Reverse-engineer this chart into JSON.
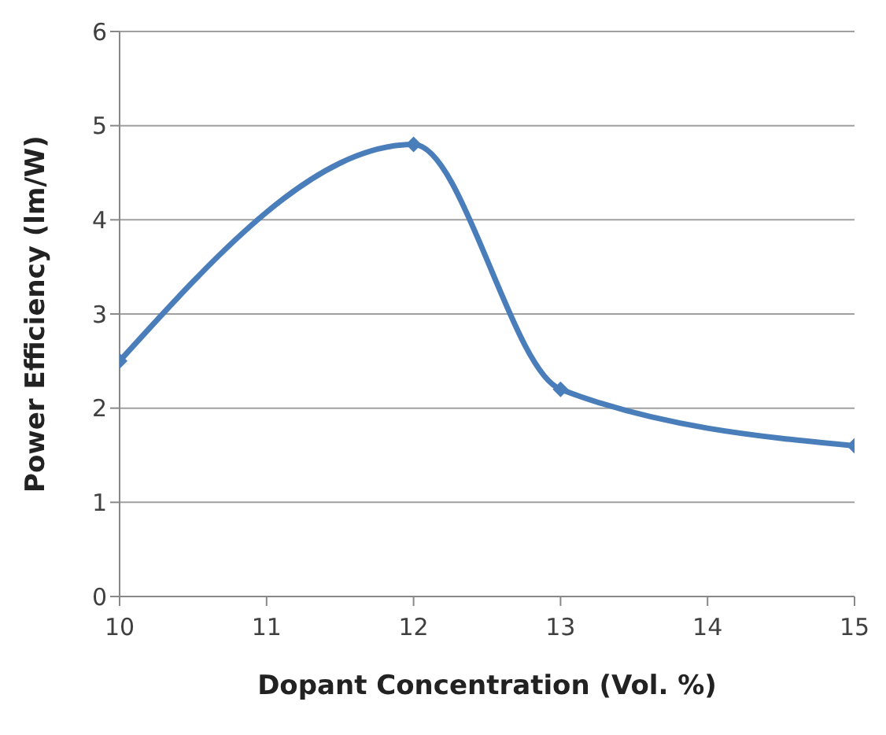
{
  "chart_data": {
    "type": "line",
    "xlabel": "Dopant Concentration (Vol. %)",
    "ylabel": "Power Efficiency (lm/W)",
    "x": [
      10,
      12,
      13,
      15
    ],
    "series": [
      {
        "color": "#4a7ebb",
        "values": [
          2.5,
          4.8,
          2.2,
          1.6
        ]
      }
    ],
    "xlim": [
      10,
      15
    ],
    "xticks": [
      10,
      11,
      12,
      13,
      14,
      15
    ],
    "ylim": [
      0,
      6
    ],
    "yticks": [
      0,
      1,
      2,
      3,
      4,
      5,
      6
    ],
    "grid": "y",
    "legend": false,
    "marker": "diamond",
    "line_style": "solid"
  }
}
